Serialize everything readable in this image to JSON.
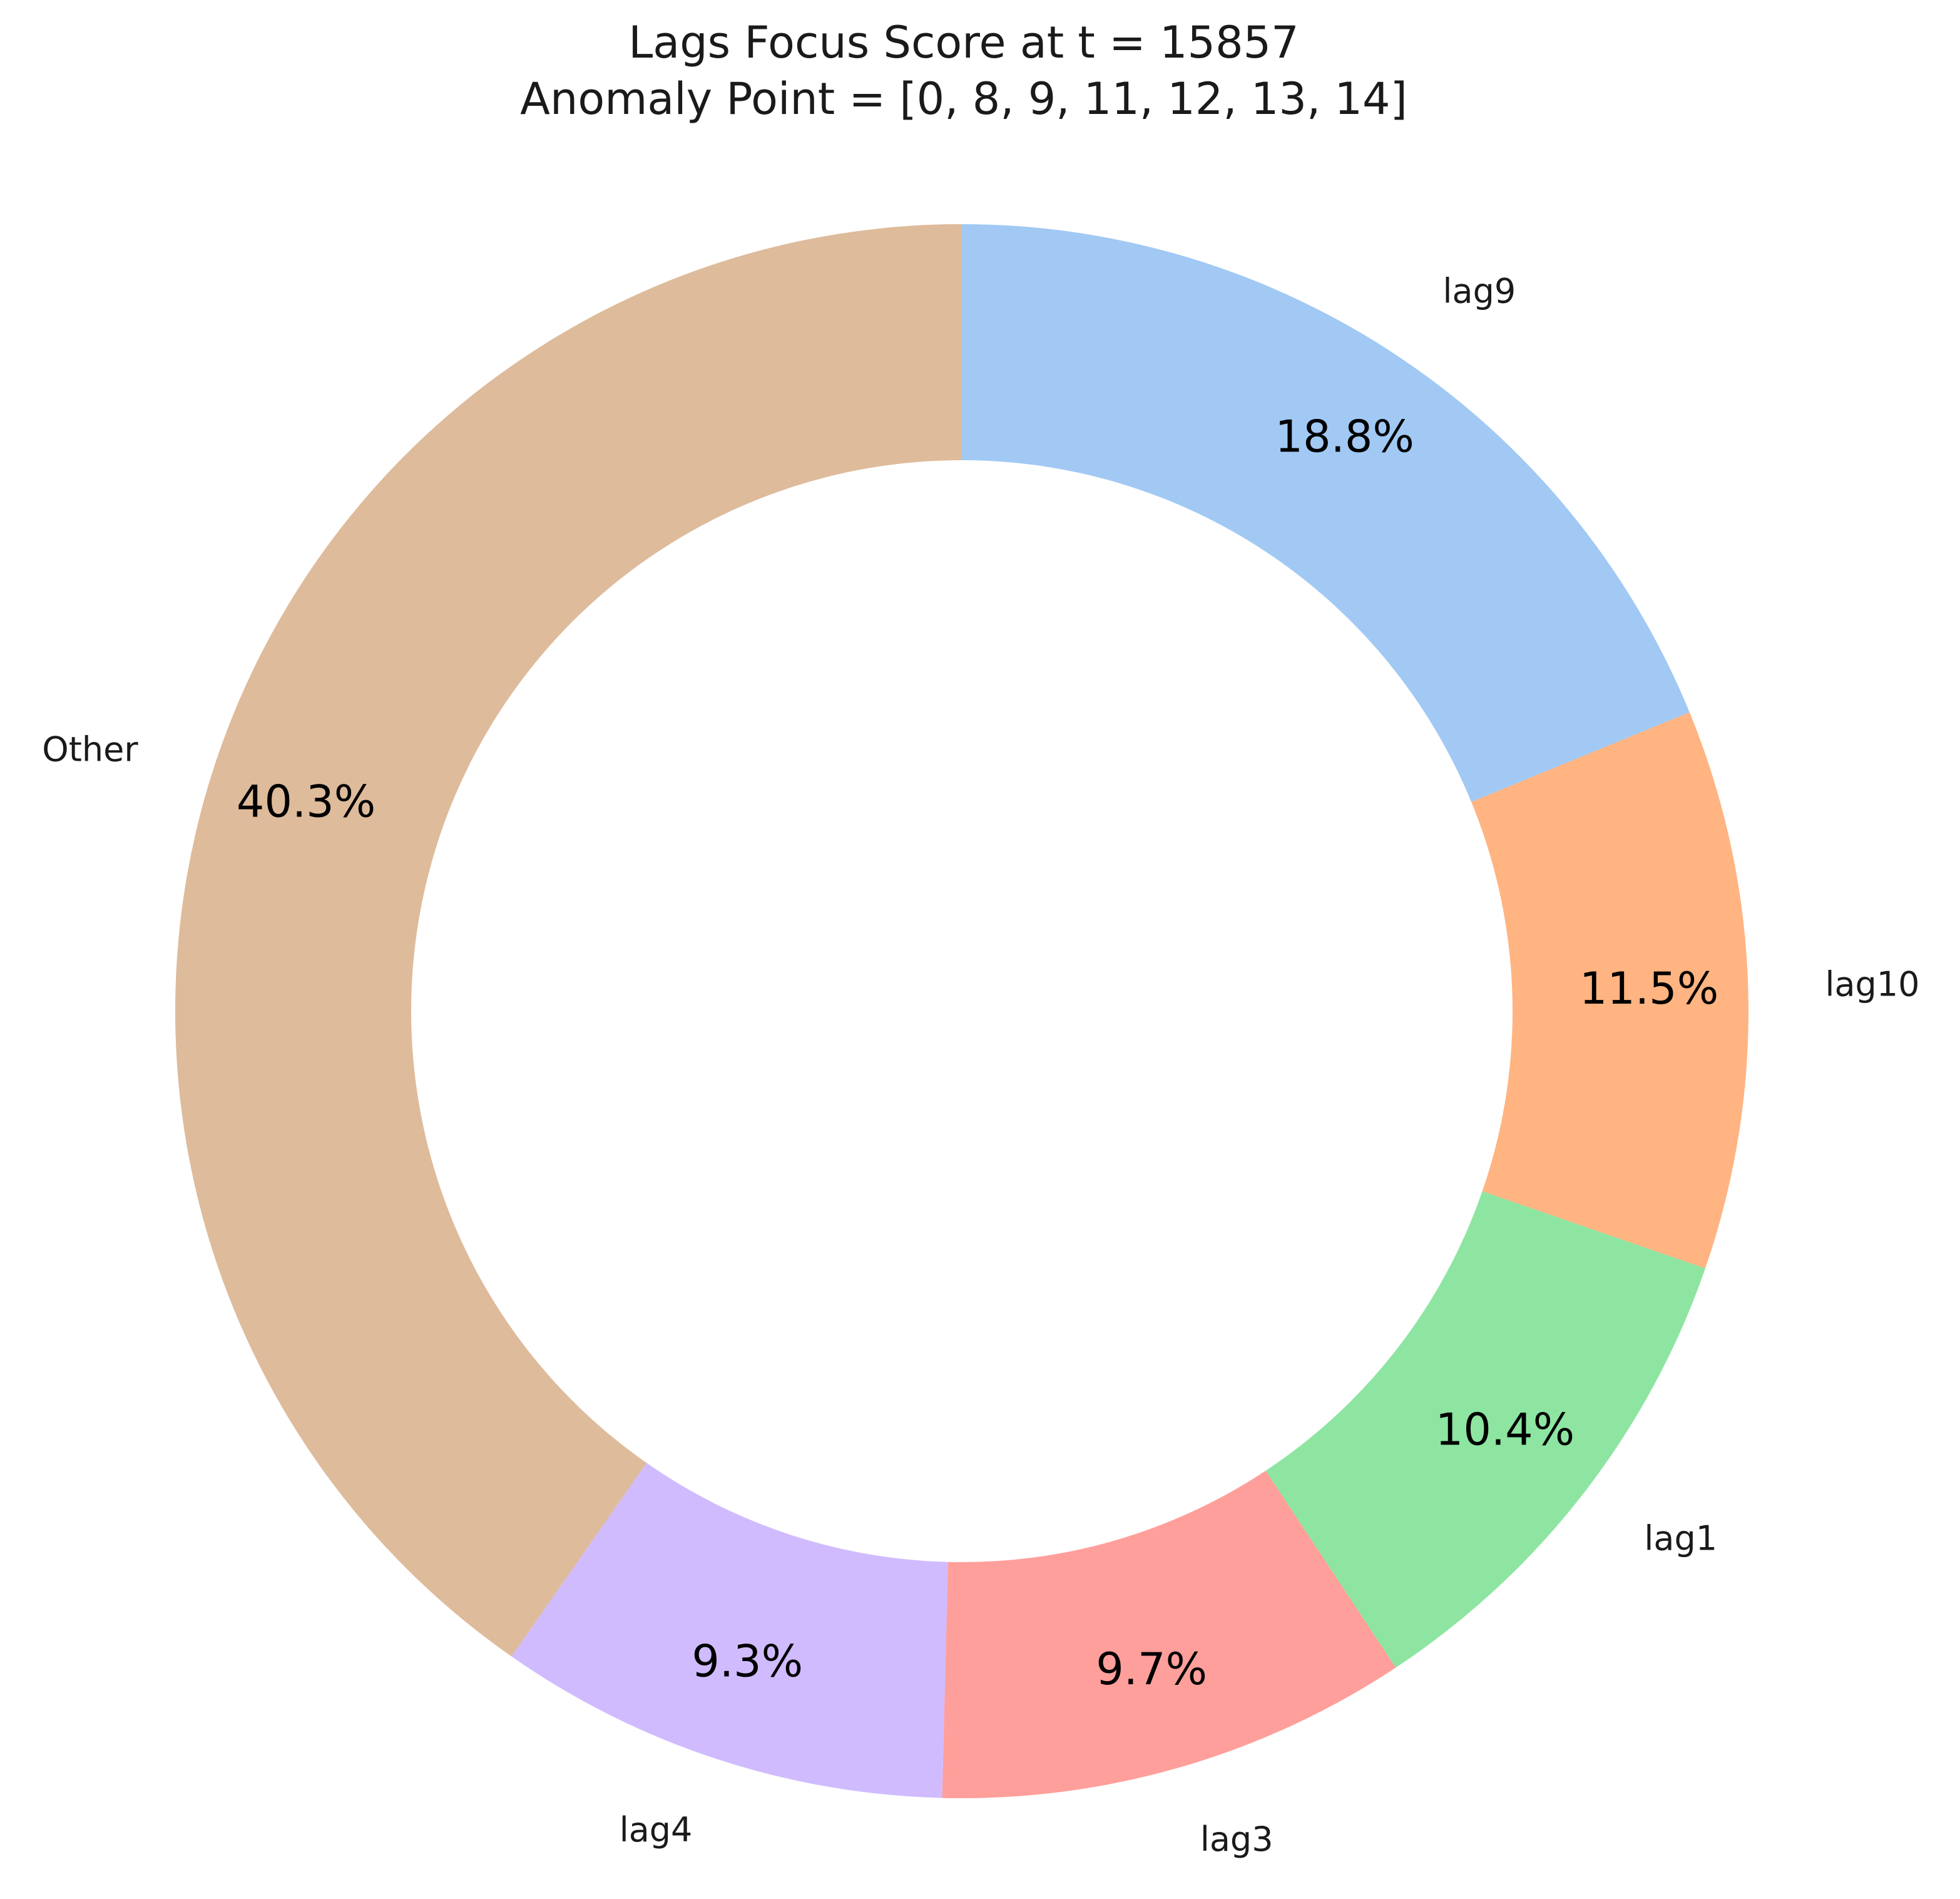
{
  "chart_data": {
    "type": "pie",
    "style": "donut",
    "title": "Lags Focus Score at t = 15857",
    "subtitle": "Anomaly Point = [0, 8, 9, 11, 12, 13, 14]",
    "start_angle_deg": 90,
    "direction": "clockwise",
    "slices": [
      {
        "label": "lag9",
        "value": 18.8,
        "pct_label": "18.8%",
        "color": "#a1c9f4"
      },
      {
        "label": "lag10",
        "value": 11.5,
        "pct_label": "11.5%",
        "color": "#ffb482"
      },
      {
        "label": "lag1",
        "value": 10.4,
        "pct_label": "10.4%",
        "color": "#8de5a1"
      },
      {
        "label": "lag3",
        "value": 9.7,
        "pct_label": "9.7%",
        "color": "#ff9f9b"
      },
      {
        "label": "lag4",
        "value": 9.3,
        "pct_label": "9.3%",
        "color": "#d0bbff"
      },
      {
        "label": "Other",
        "value": 40.3,
        "pct_label": "40.3%",
        "color": "#debb9b"
      }
    ]
  }
}
